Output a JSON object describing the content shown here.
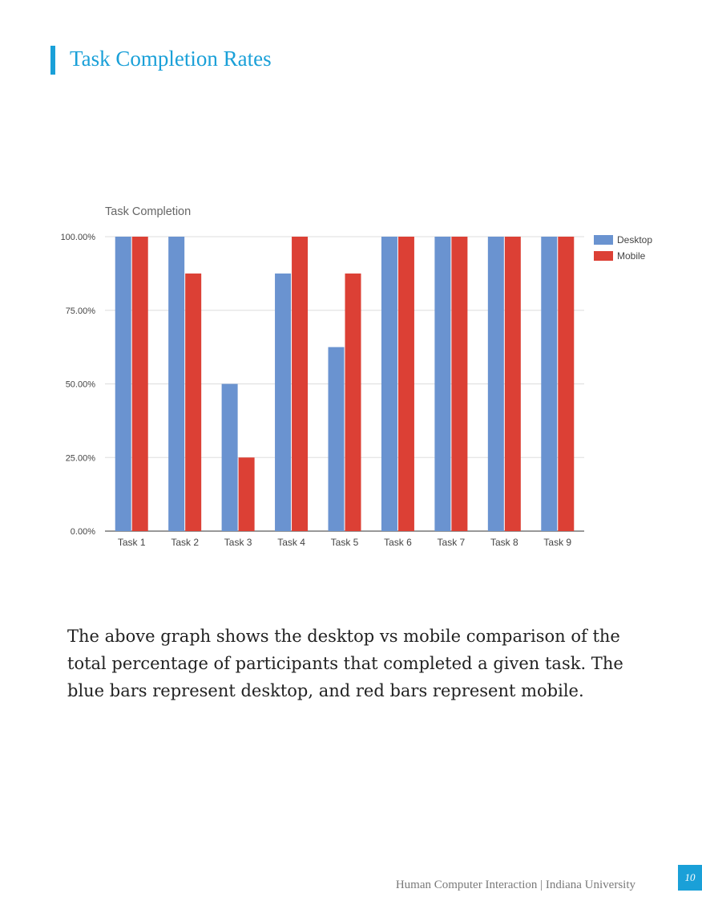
{
  "page": {
    "title": "Task Completion Rates",
    "body": "The above graph shows the desktop vs mobile comparison of the total percentage of participants that completed a given task. The blue bars represent desktop, and red bars represent mobile.",
    "footer": "Human Computer Interaction | Indiana University",
    "page_number": "10"
  },
  "chart_data": {
    "type": "bar",
    "title": "Task Completion",
    "categories": [
      "Task 1",
      "Task 2",
      "Task 3",
      "Task 4",
      "Task 5",
      "Task 6",
      "Task 7",
      "Task 8",
      "Task 9"
    ],
    "series": [
      {
        "name": "Desktop",
        "color": "#6a93d0",
        "values": [
          100,
          100,
          50,
          87.5,
          62.5,
          100,
          100,
          100,
          100
        ]
      },
      {
        "name": "Mobile",
        "color": "#dc4035",
        "values": [
          100,
          87.5,
          25,
          100,
          87.5,
          100,
          100,
          100,
          100
        ]
      }
    ],
    "ylim": [
      0,
      100
    ],
    "yticks": [
      "0.00%",
      "25.00%",
      "50.00%",
      "75.00%",
      "100.00%"
    ],
    "grid": true,
    "legend": "right"
  }
}
